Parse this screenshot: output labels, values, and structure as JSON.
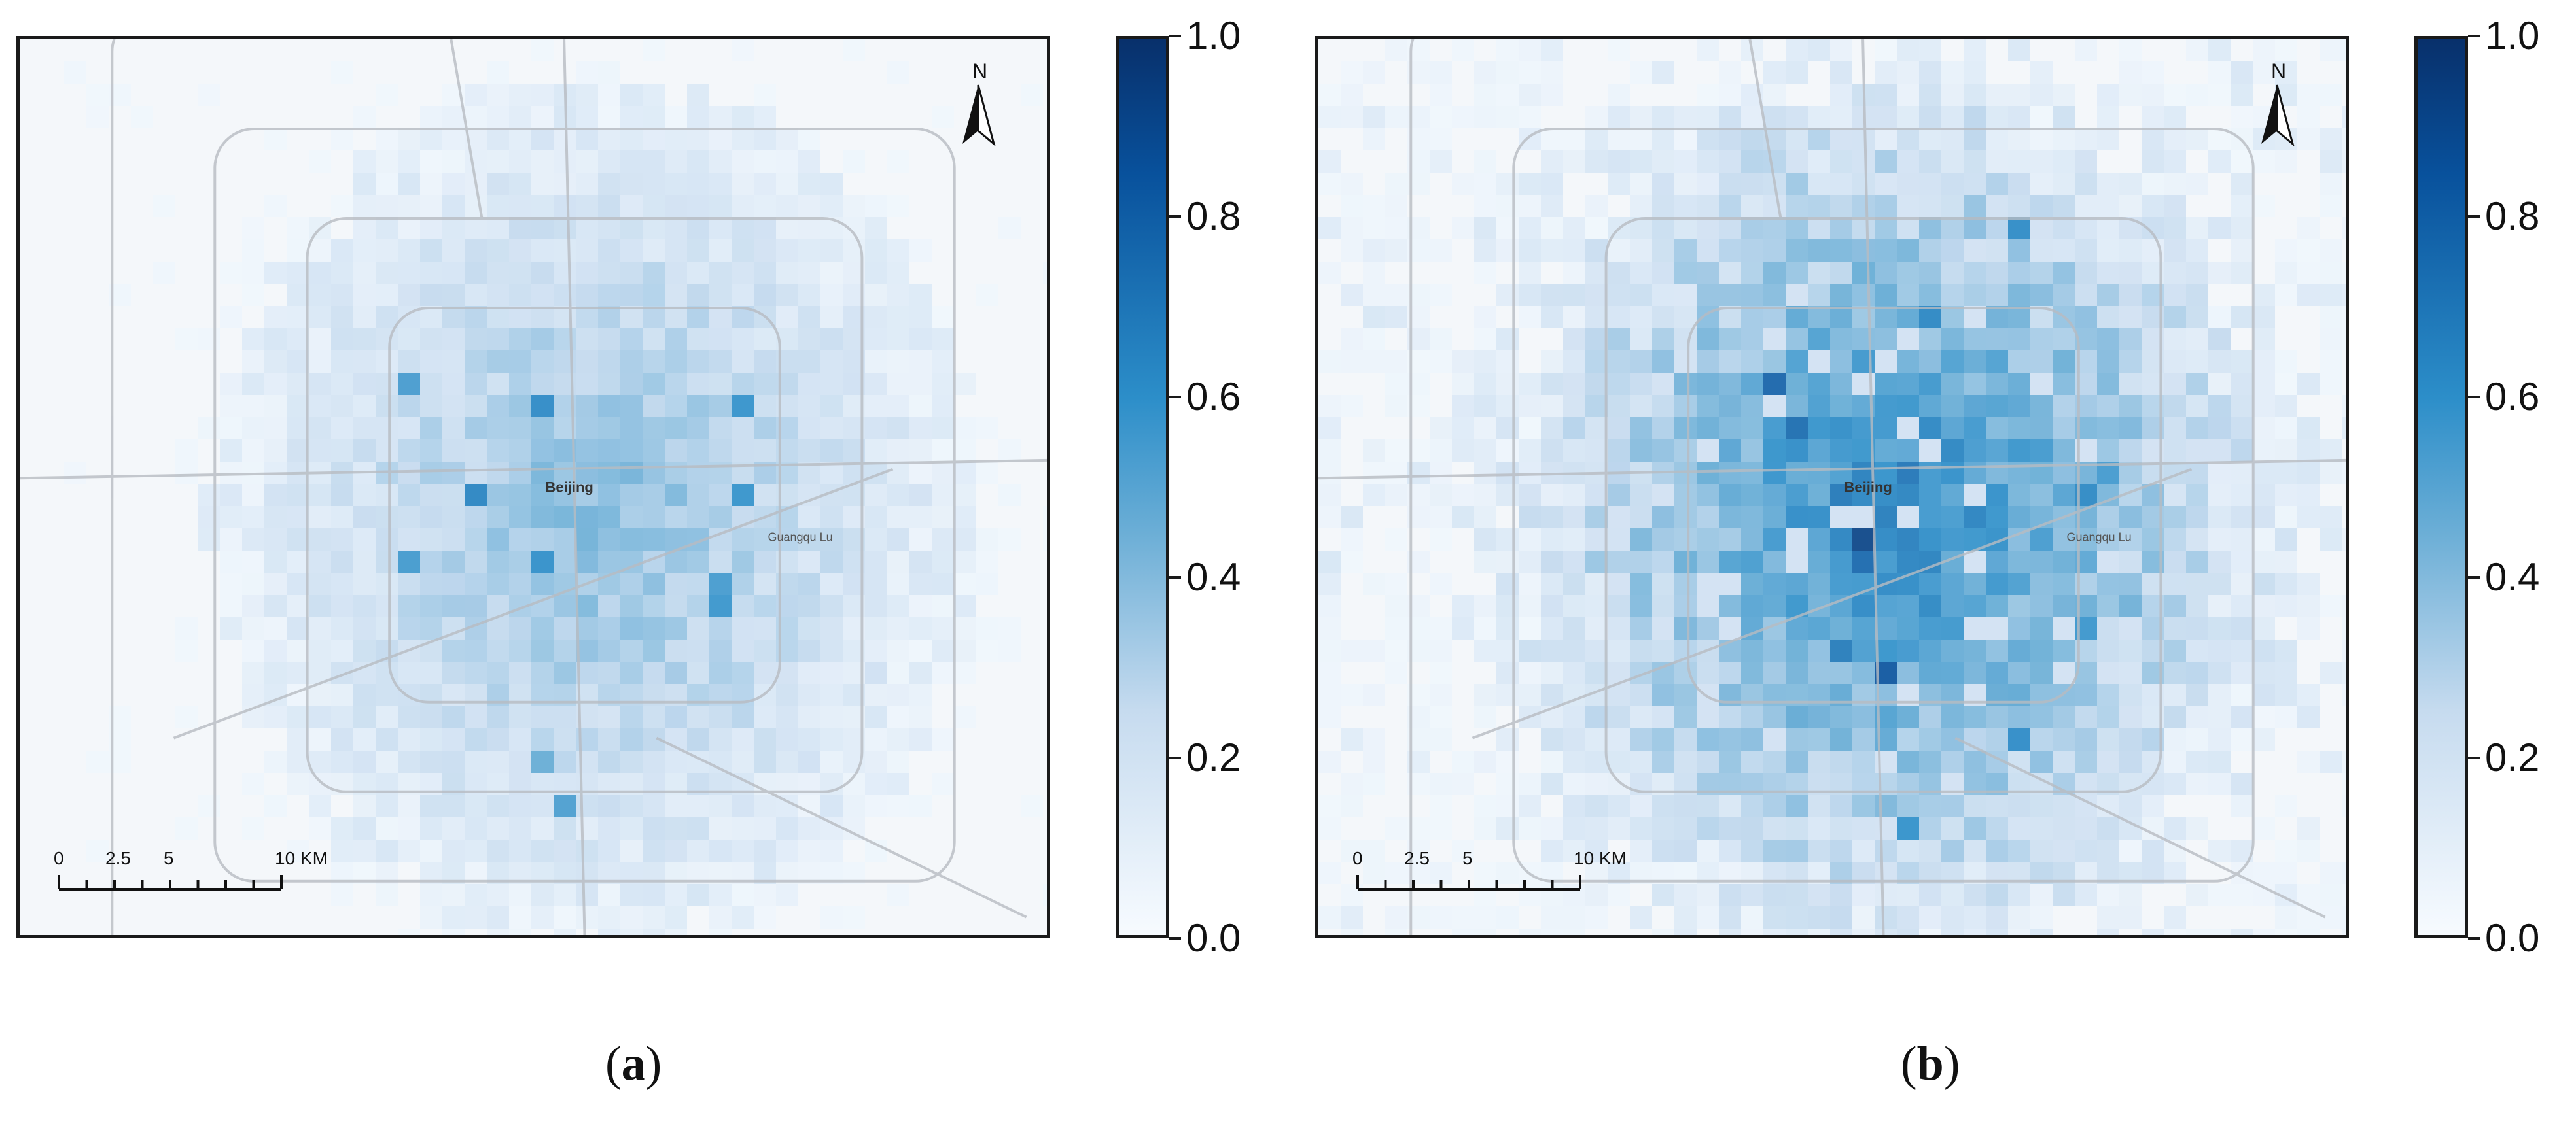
{
  "panels": [
    {
      "id": "a",
      "caption_letter": "a",
      "city_label": "Beijing",
      "road_label": "Guangqu Lu",
      "north_label": "N",
      "scale_labels": [
        "0",
        "2.5",
        "5",
        "10 KM"
      ],
      "intensity": "low"
    },
    {
      "id": "b",
      "caption_letter": "b",
      "city_label": "Beijing",
      "road_label": "Guangqu Lu",
      "north_label": "N",
      "scale_labels": [
        "0",
        "2.5",
        "5",
        "10 KM"
      ],
      "intensity": "high"
    }
  ],
  "colorbar": {
    "ticks": [
      "0.0",
      "0.2",
      "0.4",
      "0.6",
      "0.8",
      "1.0"
    ],
    "colors": [
      "#f7fbff",
      "#c6dbef",
      "#6baed6",
      "#2c8ec9",
      "#08519c",
      "#08306b"
    ]
  }
}
